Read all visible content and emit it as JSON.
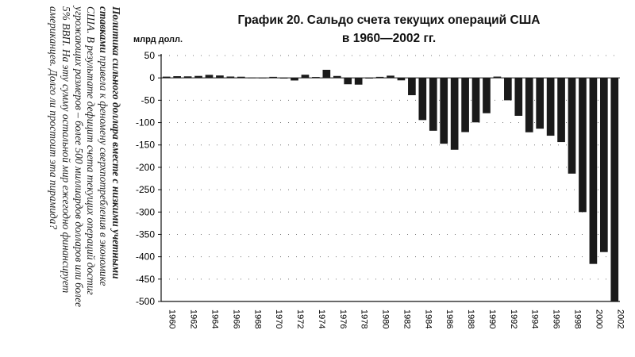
{
  "side_text": {
    "prefix_bold": "Политика сильного доллара вместе с низкими учетными ставками",
    "body": " привела к феномену сверхпотребления в экономике США. В результате дефицит счета текущих операций достиг угрожающих размеров – более 500 миллиардов долларов или более 5% ВВП. На эту сумму остальной мир ежегодно финансирует американцев. Долго ли простоит эта пирамида?"
  },
  "chart_data": {
    "type": "bar",
    "title": "График 20. Сальдо счета текущих операций США",
    "subtitle": "в 1960—2002 гг.",
    "ylabel": "млрд долл.",
    "ylim": [
      -500,
      50
    ],
    "yticks": [
      50,
      0,
      -50,
      -100,
      -150,
      -200,
      -250,
      -300,
      -350,
      -400,
      -450,
      -500
    ],
    "xtick_labels": [
      "1960",
      "1962",
      "1964",
      "1966",
      "1968",
      "1970",
      "1972",
      "1974",
      "1976",
      "1978",
      "1980",
      "1982",
      "1984",
      "1986",
      "1988",
      "1990",
      "1992",
      "1994",
      "1996",
      "1998",
      "2000",
      "2002"
    ],
    "grid": "dotted horizontal",
    "bar_color": "#1a1a1a",
    "categories": [
      "1960",
      "1961",
      "1962",
      "1963",
      "1964",
      "1965",
      "1966",
      "1967",
      "1968",
      "1969",
      "1970",
      "1971",
      "1972",
      "1973",
      "1974",
      "1975",
      "1976",
      "1977",
      "1978",
      "1979",
      "1980",
      "1981",
      "1982",
      "1983",
      "1984",
      "1985",
      "1986",
      "1987",
      "1988",
      "1989",
      "1990",
      "1991",
      "1992",
      "1993",
      "1994",
      "1995",
      "1996",
      "1997",
      "1998",
      "1999",
      "2000",
      "2001",
      "2002"
    ],
    "values": [
      2.8,
      3.8,
      3.4,
      4.4,
      6.8,
      5.4,
      3.0,
      2.6,
      0.6,
      0.4,
      2.3,
      -1.4,
      -5.8,
      7.1,
      2.0,
      18.1,
      4.3,
      -14.3,
      -15.1,
      -0.3,
      2.3,
      5.0,
      -5.5,
      -38.7,
      -94.3,
      -118.2,
      -147.2,
      -160.7,
      -121.2,
      -99.5,
      -79.0,
      2.9,
      -50.1,
      -84.8,
      -121.6,
      -113.6,
      -129.3,
      -143.5,
      -214.1,
      -300.1,
      -416.0,
      -389.5,
      -503.4
    ]
  }
}
